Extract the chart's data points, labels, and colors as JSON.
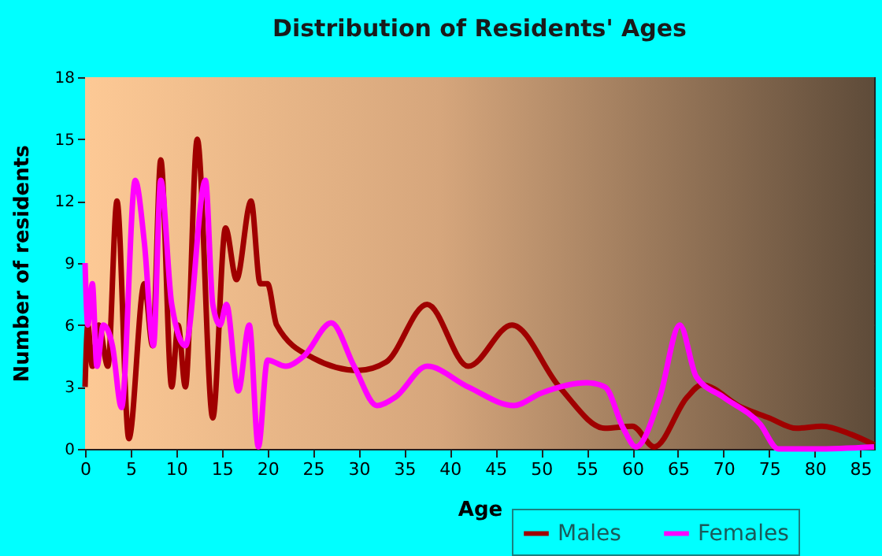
{
  "chart_data": {
    "type": "line",
    "title": "Distribution of Residents' Ages",
    "xlabel": "Age",
    "ylabel": "Number of residents",
    "xlim": [
      0,
      86.5
    ],
    "xticks": [
      0,
      5,
      10,
      15,
      20,
      25,
      30,
      35,
      40,
      45,
      50,
      55,
      60,
      65,
      70,
      75,
      80,
      85
    ],
    "ylim": [
      0,
      18
    ],
    "yticks": [
      0,
      3,
      6,
      9,
      12,
      15,
      18
    ],
    "grid": true,
    "legend": "bottom right",
    "series": [
      {
        "name": "Males",
        "color": "#a00000",
        "x": [
          0,
          0.3,
          0.8,
          1.5,
          2.5,
          3.5,
          4.8,
          6.5,
          7.4,
          8.3,
          9.5,
          10.2,
          11,
          12.3,
          14,
          15.4,
          16.6,
          18.2,
          19.2,
          20,
          21,
          25,
          30,
          33,
          37.5,
          42,
          46.8,
          52,
          57,
          60,
          62.4,
          66,
          67.6,
          72,
          75,
          78,
          80.8,
          84,
          86.5
        ],
        "values": [
          3,
          6,
          4,
          6,
          4,
          12,
          0.5,
          8,
          5,
          14,
          3,
          6,
          3,
          15,
          1.5,
          10.7,
          8.2,
          12,
          8,
          8,
          6,
          4.4,
          3.8,
          4.2,
          7,
          4,
          6,
          3,
          1,
          1.1,
          0.1,
          2.5,
          3.1,
          2,
          1.5,
          1,
          1.1,
          0.7,
          0.2
        ]
      },
      {
        "name": "Females",
        "color": "#ff00ff",
        "x": [
          0,
          0.3,
          0.8,
          1.3,
          2,
          3,
          4,
          5.5,
          6.5,
          7.5,
          8.3,
          9.5,
          11,
          13.2,
          14,
          14.8,
          15.5,
          16.8,
          18,
          19,
          20,
          22,
          24,
          27,
          29.5,
          32,
          34,
          37.5,
          42,
          47,
          50,
          55,
          57,
          59,
          60.4,
          63,
          65.2,
          67,
          70,
          74,
          76,
          80,
          86.5
        ],
        "values": [
          9,
          6,
          8,
          4,
          6,
          5,
          2,
          13,
          10,
          5,
          13,
          7,
          5,
          13,
          7,
          6,
          7,
          2.8,
          6,
          0.1,
          4.3,
          4,
          4.5,
          6.1,
          4,
          2.1,
          2.5,
          4,
          3,
          2.1,
          2.7,
          3.2,
          3,
          1,
          0.1,
          2.5,
          6,
          3.5,
          2.5,
          1.2,
          0,
          0,
          0.1
        ]
      }
    ]
  }
}
